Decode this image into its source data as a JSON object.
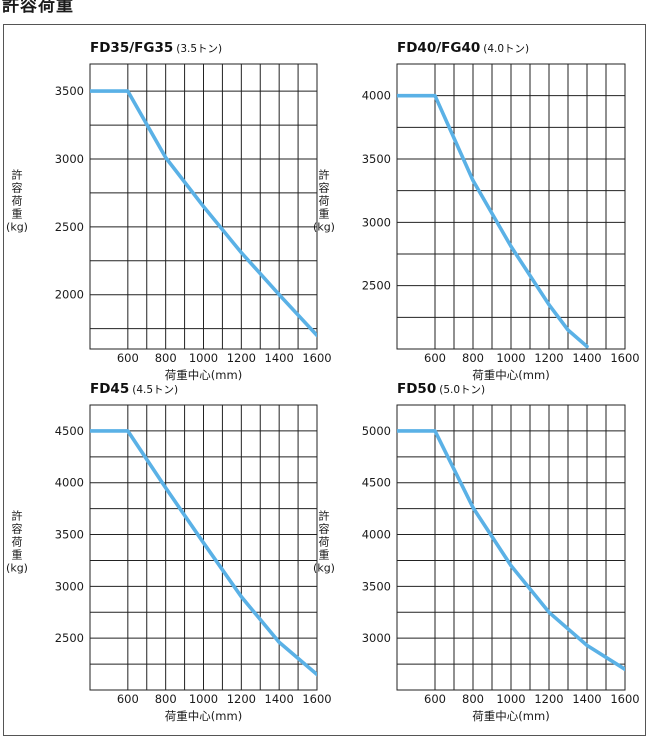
{
  "page": {
    "header_title": "許容荷重",
    "line_color": "#5ab1e6"
  },
  "chart_data": [
    {
      "type": "line",
      "title": "FD35/FG35",
      "subtitle": "(3.5トン)",
      "xlabel": "荷重中心(mm)",
      "ylabel": "許容荷重(kg)",
      "ylabel_lines": [
        "許",
        "容",
        "荷",
        "重",
        "(kg)"
      ],
      "xlim": [
        400,
        1600
      ],
      "ylim": [
        1600,
        3700
      ],
      "xticks": [
        600,
        800,
        1000,
        1200,
        1400,
        1600
      ],
      "xtick_labels": [
        "600",
        "800",
        "1000",
        "1200",
        "1400",
        "1600"
      ],
      "yticks": [
        2000,
        2500,
        3000,
        3500
      ],
      "ytick_labels": [
        "2000",
        "2500",
        "3000",
        "3500"
      ],
      "x": [
        400,
        600,
        800,
        1000,
        1200,
        1400,
        1600
      ],
      "y": [
        3500,
        3500,
        3010,
        2650,
        2310,
        2000,
        1700
      ],
      "grid": true
    },
    {
      "type": "line",
      "title": "FD40/FG40",
      "subtitle": "(4.0トン)",
      "xlabel": "荷重中心(mm)",
      "ylabel": "許容荷重(kg)",
      "ylabel_lines": [
        "許",
        "容",
        "荷",
        "重",
        "(kg)"
      ],
      "xlim": [
        400,
        1600
      ],
      "ylim": [
        2000,
        4250
      ],
      "xticks": [
        600,
        800,
        1000,
        1200,
        1400,
        1600
      ],
      "xtick_labels": [
        "600",
        "800",
        "1000",
        "1200",
        "1400",
        "1600"
      ],
      "yticks": [
        2500,
        3000,
        3500,
        4000
      ],
      "ytick_labels": [
        "2500",
        "3000",
        "3500",
        "4000"
      ],
      "x": [
        400,
        600,
        800,
        1000,
        1200,
        1300,
        1400
      ],
      "y": [
        4000,
        4000,
        3330,
        2810,
        2350,
        2150,
        2020
      ],
      "grid": true
    },
    {
      "type": "line",
      "title": "FD45",
      "subtitle": "(4.5トン)",
      "xlabel": "荷重中心(mm)",
      "ylabel": "許容荷重(kg)",
      "ylabel_lines": [
        "許",
        "容",
        "荷",
        "重",
        "(kg)"
      ],
      "xlim": [
        400,
        1600
      ],
      "ylim": [
        2000,
        4750
      ],
      "xticks": [
        600,
        800,
        1000,
        1200,
        1400,
        1600
      ],
      "xtick_labels": [
        "600",
        "800",
        "1000",
        "1200",
        "1400",
        "1600"
      ],
      "yticks": [
        2500,
        3000,
        3500,
        4000,
        4500
      ],
      "ytick_labels": [
        "2500",
        "3000",
        "3500",
        "4000",
        "4500"
      ],
      "x": [
        400,
        600,
        800,
        1000,
        1200,
        1400,
        1600
      ],
      "y": [
        4500,
        4500,
        3950,
        3420,
        2900,
        2460,
        2150
      ],
      "grid": true
    },
    {
      "type": "line",
      "title": "FD50",
      "subtitle": "(5.0トン)",
      "xlabel": "荷重中心(mm)",
      "ylabel": "許容荷重(kg)",
      "ylabel_lines": [
        "許",
        "容",
        "荷",
        "重",
        "(kg)"
      ],
      "xlim": [
        400,
        1600
      ],
      "ylim": [
        2500,
        5250
      ],
      "xticks": [
        600,
        800,
        1000,
        1200,
        1400,
        1600
      ],
      "xtick_labels": [
        "600",
        "800",
        "1000",
        "1200",
        "1400",
        "1600"
      ],
      "yticks": [
        3000,
        3500,
        4000,
        4500,
        5000
      ],
      "ytick_labels": [
        "3000",
        "3500",
        "4000",
        "4500",
        "5000"
      ],
      "x": [
        400,
        600,
        800,
        1000,
        1200,
        1400,
        1600
      ],
      "y": [
        5000,
        5000,
        4260,
        3700,
        3250,
        2930,
        2700
      ],
      "grid": true
    }
  ]
}
